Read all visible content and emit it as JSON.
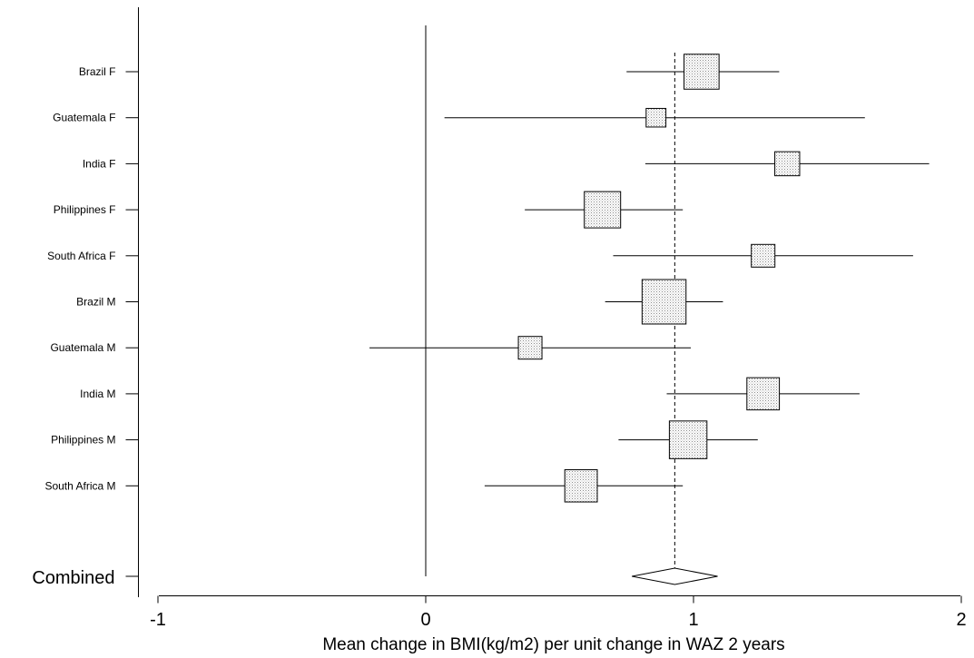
{
  "chart_data": {
    "type": "forest",
    "xlabel": "Mean change in BMI(kg/m2) per unit change in WAZ 2 years",
    "x_ticks": [
      -1,
      0,
      1,
      2
    ],
    "xlim": [
      -1.1,
      2.05
    ],
    "reference_line": 0,
    "pooled_estimate_line": 0.93,
    "grid": false,
    "studies": [
      {
        "label": "Brazil F",
        "estimate": 1.03,
        "ci_low": 0.75,
        "ci_high": 1.32,
        "weight": 0.95
      },
      {
        "label": "Guatemala F",
        "estimate": 0.86,
        "ci_low": 0.07,
        "ci_high": 1.64,
        "weight": 0.35
      },
      {
        "label": "India F",
        "estimate": 1.35,
        "ci_low": 0.82,
        "ci_high": 1.88,
        "weight": 0.55
      },
      {
        "label": "Philippines F",
        "estimate": 0.66,
        "ci_low": 0.37,
        "ci_high": 0.96,
        "weight": 1.0
      },
      {
        "label": "South Africa F",
        "estimate": 1.26,
        "ci_low": 0.7,
        "ci_high": 1.82,
        "weight": 0.5
      },
      {
        "label": "Brazil M",
        "estimate": 0.89,
        "ci_low": 0.67,
        "ci_high": 1.11,
        "weight": 1.3
      },
      {
        "label": "Guatemala M",
        "estimate": 0.39,
        "ci_low": -0.21,
        "ci_high": 0.99,
        "weight": 0.5
      },
      {
        "label": "India M",
        "estimate": 1.26,
        "ci_low": 0.9,
        "ci_high": 1.62,
        "weight": 0.85
      },
      {
        "label": "Philippines M",
        "estimate": 0.98,
        "ci_low": 0.72,
        "ci_high": 1.24,
        "weight": 1.05
      },
      {
        "label": "South Africa M",
        "estimate": 0.58,
        "ci_low": 0.22,
        "ci_high": 0.96,
        "weight": 0.85
      }
    ],
    "combined": {
      "label": "Combined",
      "estimate": 0.93,
      "ci_low": 0.77,
      "ci_high": 1.09
    }
  }
}
